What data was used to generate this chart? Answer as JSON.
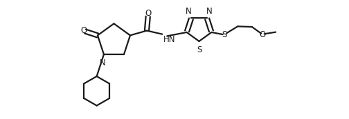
{
  "background_color": "#ffffff",
  "line_color": "#1a1a1a",
  "line_width": 1.6,
  "font_size": 8.5,
  "figsize": [
    5.04,
    1.73
  ],
  "dpi": 100,
  "xlim": [
    0.0,
    9.5
  ],
  "ylim": [
    -2.8,
    2.2
  ]
}
